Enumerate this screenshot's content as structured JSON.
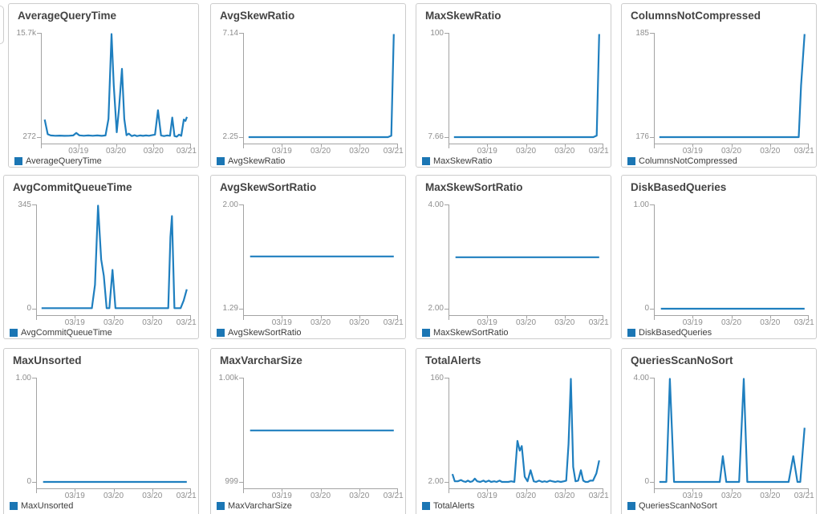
{
  "x_tick_labels": [
    "03/19",
    "03/20",
    "03/20",
    "03/21"
  ],
  "colors": {
    "line": "#1f7fbf",
    "legend_swatch": "#1b76b4",
    "axis": "#a3a3a3",
    "tick_label": "#8e8e8e",
    "title": "#434343",
    "panel_border": "#cccccc"
  },
  "chart_data": [
    {
      "type": "line",
      "title": "AverageQueryTime",
      "legend": "AverageQueryTime",
      "ymax_label": "15.7k",
      "ymin_label": "272",
      "ylim": [
        272,
        15700
      ],
      "x_tick_labels": [
        "03/19",
        "03/20",
        "03/20",
        "03/21"
      ],
      "points": [
        [
          0.02,
          2900
        ],
        [
          0.04,
          700
        ],
        [
          0.06,
          520
        ],
        [
          0.09,
          480
        ],
        [
          0.12,
          500
        ],
        [
          0.15,
          460
        ],
        [
          0.18,
          480
        ],
        [
          0.21,
          520
        ],
        [
          0.23,
          900
        ],
        [
          0.25,
          540
        ],
        [
          0.28,
          480
        ],
        [
          0.31,
          520
        ],
        [
          0.34,
          480
        ],
        [
          0.37,
          520
        ],
        [
          0.4,
          460
        ],
        [
          0.425,
          520
        ],
        [
          0.445,
          3000
        ],
        [
          0.465,
          15700
        ],
        [
          0.48,
          8000
        ],
        [
          0.5,
          1000
        ],
        [
          0.515,
          4500
        ],
        [
          0.535,
          10500
        ],
        [
          0.55,
          3000
        ],
        [
          0.565,
          560
        ],
        [
          0.58,
          800
        ],
        [
          0.6,
          430
        ],
        [
          0.62,
          560
        ],
        [
          0.635,
          430
        ],
        [
          0.655,
          520
        ],
        [
          0.675,
          460
        ],
        [
          0.695,
          520
        ],
        [
          0.715,
          480
        ],
        [
          0.735,
          560
        ],
        [
          0.755,
          640
        ],
        [
          0.775,
          4300
        ],
        [
          0.795,
          520
        ],
        [
          0.815,
          430
        ],
        [
          0.835,
          520
        ],
        [
          0.855,
          480
        ],
        [
          0.87,
          3200
        ],
        [
          0.885,
          430
        ],
        [
          0.9,
          350
        ],
        [
          0.915,
          640
        ],
        [
          0.93,
          460
        ],
        [
          0.947,
          2900
        ],
        [
          0.958,
          2700
        ],
        [
          0.968,
          3300
        ]
      ]
    },
    {
      "type": "line",
      "title": "AvgSkewRatio",
      "legend": "AvgSkewRatio",
      "ymax_label": "7.14",
      "ymin_label": "2.25",
      "ylim": [
        2.25,
        7.14
      ],
      "x_tick_labels": [
        "03/19",
        "03/20",
        "03/20",
        "03/21"
      ],
      "points": [
        [
          0.03,
          2.25
        ],
        [
          0.93,
          2.25
        ],
        [
          0.952,
          2.32
        ],
        [
          0.968,
          7.14
        ]
      ]
    },
    {
      "type": "line",
      "title": "MaxSkewRatio",
      "legend": "MaxSkewRatio",
      "ymax_label": "100",
      "ymin_label": "7.66",
      "ylim": [
        7.66,
        100
      ],
      "x_tick_labels": [
        "03/19",
        "03/20",
        "03/20",
        "03/21"
      ],
      "points": [
        [
          0.03,
          7.66
        ],
        [
          0.93,
          7.66
        ],
        [
          0.952,
          9
        ],
        [
          0.968,
          100
        ]
      ]
    },
    {
      "type": "line",
      "title": "ColumnsNotCompressed",
      "legend": "ColumnsNotCompressed",
      "ymax_label": "185",
      "ymin_label": "176",
      "ylim": [
        176,
        185
      ],
      "x_tick_labels": [
        "03/19",
        "03/20",
        "03/20",
        "03/21"
      ],
      "points": [
        [
          0.03,
          176
        ],
        [
          0.93,
          176
        ],
        [
          0.945,
          180.5
        ],
        [
          0.968,
          185
        ]
      ]
    },
    {
      "type": "line",
      "title": "AvgCommitQueueTime",
      "legend": "AvgCommitQueueTime",
      "ymax_label": "345",
      "ymin_label": "0",
      "ylim": [
        0,
        345
      ],
      "x_tick_labels": [
        "03/19",
        "03/20",
        "03/20",
        "03/21"
      ],
      "points": [
        [
          0.03,
          2
        ],
        [
          0.355,
          2
        ],
        [
          0.375,
          80
        ],
        [
          0.395,
          345
        ],
        [
          0.415,
          165
        ],
        [
          0.432,
          110
        ],
        [
          0.45,
          2
        ],
        [
          0.468,
          2
        ],
        [
          0.488,
          130
        ],
        [
          0.507,
          2
        ],
        [
          0.6,
          2
        ],
        [
          0.75,
          2
        ],
        [
          0.848,
          2
        ],
        [
          0.862,
          240
        ],
        [
          0.872,
          310
        ],
        [
          0.888,
          2
        ],
        [
          0.91,
          2
        ],
        [
          0.928,
          2
        ],
        [
          0.948,
          28
        ],
        [
          0.968,
          65
        ]
      ]
    },
    {
      "type": "line",
      "title": "AvgSkewSortRatio",
      "legend": "AvgSkewSortRatio",
      "ymax_label": "2.00",
      "ymin_label": "1.29",
      "ylim": [
        1.29,
        2.0
      ],
      "x_tick_labels": [
        "03/19",
        "03/20",
        "03/20",
        "03/21"
      ],
      "points": [
        [
          0.04,
          1.65
        ],
        [
          0.968,
          1.65
        ]
      ]
    },
    {
      "type": "line",
      "title": "MaxSkewSortRatio",
      "legend": "MaxSkewSortRatio",
      "ymax_label": "4.00",
      "ymin_label": "2.00",
      "ylim": [
        2.0,
        4.0
      ],
      "x_tick_labels": [
        "03/19",
        "03/20",
        "03/20",
        "03/21"
      ],
      "points": [
        [
          0.04,
          3.0
        ],
        [
          0.968,
          3.0
        ]
      ]
    },
    {
      "type": "line",
      "title": "DiskBasedQueries",
      "legend": "DiskBasedQueries",
      "ymax_label": "1.00",
      "ymin_label": "0",
      "ylim": [
        0,
        1.0
      ],
      "x_tick_labels": [
        "03/19",
        "03/20",
        "03/20",
        "03/21"
      ],
      "points": [
        [
          0.04,
          0
        ],
        [
          0.968,
          0
        ]
      ]
    },
    {
      "type": "line",
      "title": "MaxUnsorted",
      "legend": "MaxUnsorted",
      "ymax_label": "1.00",
      "ymin_label": "0",
      "ylim": [
        0,
        1.0
      ],
      "x_tick_labels": [
        "03/19",
        "03/20",
        "03/20",
        "03/21"
      ],
      "points": [
        [
          0.04,
          0
        ],
        [
          0.968,
          0
        ]
      ]
    },
    {
      "type": "line",
      "title": "MaxVarcharSize",
      "legend": "MaxVarcharSize",
      "ymax_label": "1.00k",
      "ymin_label": "999",
      "ylim": [
        999,
        1000
      ],
      "x_tick_labels": [
        "03/19",
        "03/20",
        "03/20",
        "03/21"
      ],
      "points": [
        [
          0.04,
          999.5
        ],
        [
          0.968,
          999.5
        ]
      ]
    },
    {
      "type": "line",
      "title": "TotalAlerts",
      "legend": "TotalAlerts",
      "ymax_label": "160",
      "ymin_label": "2.00",
      "ylim": [
        2,
        160
      ],
      "x_tick_labels": [
        "03/19",
        "03/20",
        "03/20",
        "03/21"
      ],
      "points": [
        [
          0.02,
          14
        ],
        [
          0.035,
          3
        ],
        [
          0.055,
          3
        ],
        [
          0.075,
          5
        ],
        [
          0.09,
          3
        ],
        [
          0.105,
          2
        ],
        [
          0.12,
          4
        ],
        [
          0.135,
          2
        ],
        [
          0.15,
          3
        ],
        [
          0.165,
          7
        ],
        [
          0.18,
          3
        ],
        [
          0.2,
          2
        ],
        [
          0.22,
          4
        ],
        [
          0.235,
          2
        ],
        [
          0.255,
          4
        ],
        [
          0.27,
          2
        ],
        [
          0.29,
          3
        ],
        [
          0.305,
          2
        ],
        [
          0.325,
          4
        ],
        [
          0.34,
          2
        ],
        [
          0.36,
          2
        ],
        [
          0.38,
          2
        ],
        [
          0.4,
          3
        ],
        [
          0.42,
          2
        ],
        [
          0.44,
          65
        ],
        [
          0.455,
          50
        ],
        [
          0.468,
          57
        ],
        [
          0.487,
          10
        ],
        [
          0.505,
          3
        ],
        [
          0.525,
          20
        ],
        [
          0.545,
          3
        ],
        [
          0.56,
          2
        ],
        [
          0.58,
          4
        ],
        [
          0.6,
          2
        ],
        [
          0.615,
          3
        ],
        [
          0.63,
          2
        ],
        [
          0.65,
          4
        ],
        [
          0.665,
          3
        ],
        [
          0.685,
          2
        ],
        [
          0.7,
          3
        ],
        [
          0.72,
          2
        ],
        [
          0.74,
          3
        ],
        [
          0.755,
          4
        ],
        [
          0.77,
          60
        ],
        [
          0.785,
          160
        ],
        [
          0.8,
          25
        ],
        [
          0.815,
          3
        ],
        [
          0.832,
          4
        ],
        [
          0.85,
          20
        ],
        [
          0.865,
          4
        ],
        [
          0.88,
          2
        ],
        [
          0.895,
          2
        ],
        [
          0.91,
          4
        ],
        [
          0.928,
          4
        ],
        [
          0.95,
          15
        ],
        [
          0.968,
          35
        ]
      ]
    },
    {
      "type": "line",
      "title": "QueriesScanNoSort",
      "legend": "QueriesScanNoSort",
      "ymax_label": "4.00",
      "ymin_label": "0",
      "ylim": [
        0,
        4.0
      ],
      "x_tick_labels": [
        "03/19",
        "03/20",
        "03/20",
        "03/21"
      ],
      "points": [
        [
          0.03,
          0
        ],
        [
          0.075,
          0
        ],
        [
          0.098,
          4
        ],
        [
          0.125,
          0
        ],
        [
          0.42,
          0
        ],
        [
          0.44,
          1
        ],
        [
          0.462,
          0
        ],
        [
          0.545,
          0
        ],
        [
          0.575,
          4
        ],
        [
          0.598,
          0
        ],
        [
          0.865,
          0
        ],
        [
          0.895,
          1
        ],
        [
          0.922,
          0
        ],
        [
          0.94,
          0
        ],
        [
          0.968,
          2.1
        ]
      ]
    }
  ]
}
